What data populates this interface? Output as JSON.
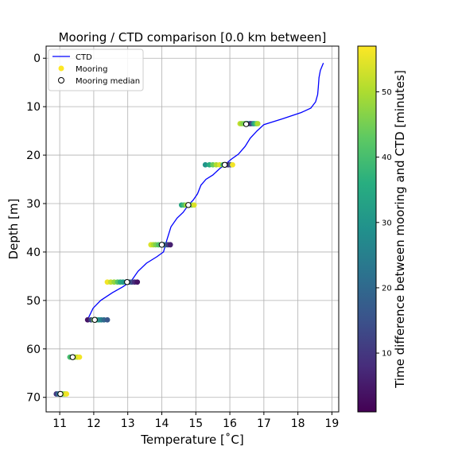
{
  "chart_data": {
    "type": "scatter",
    "title": "Mooring / CTD comparison [0.0 km between]",
    "xlabel": "Temperature [˚C]",
    "ylabel": "Depth [m]",
    "xlim": [
      10.6,
      19.2
    ],
    "ylim": [
      73,
      -2.5
    ],
    "y_inverted": true,
    "grid": true,
    "xticks": [
      "11",
      "12",
      "13",
      "14",
      "15",
      "16",
      "17",
      "18",
      "19"
    ],
    "yticks": [
      "0",
      "10",
      "20",
      "30",
      "40",
      "50",
      "60",
      "70"
    ],
    "legend": {
      "placement": "upper-left",
      "entries": [
        "CTD",
        "Mooring",
        "Mooring median"
      ]
    },
    "colorbar": {
      "label": "Time difference between mooring and CTD [minutes]",
      "range": [
        1,
        57
      ],
      "ticks": [
        "10",
        "20",
        "30",
        "40",
        "50"
      ],
      "colormap": "viridis"
    },
    "series": [
      {
        "name": "CTD",
        "kind": "line",
        "color": "#0000ff",
        "x": [
          18.75,
          18.66,
          18.62,
          18.6,
          18.58,
          18.52,
          18.38,
          18.1,
          17.55,
          17.0,
          16.8,
          16.6,
          16.45,
          16.25,
          16.05,
          15.85,
          15.7,
          15.5,
          15.3,
          15.15,
          15.05,
          14.92,
          14.78,
          14.63,
          14.45,
          14.27,
          14.15,
          14.05,
          13.85,
          13.55,
          13.3,
          13.1,
          12.85,
          12.55,
          12.2,
          11.98,
          11.85
        ],
        "y": [
          1,
          2.5,
          4,
          6,
          7.5,
          9,
          10.3,
          11.2,
          12.5,
          13.7,
          15,
          16.5,
          18.2,
          19.8,
          20.8,
          22,
          22.8,
          24.1,
          25,
          26.2,
          28,
          29.3,
          30.3,
          31.8,
          33,
          34.8,
          37.5,
          40,
          41,
          42.3,
          44,
          46,
          47.2,
          48.4,
          50,
          51.6,
          53.5
        ]
      },
      {
        "name": "Mooring",
        "kind": "scatter",
        "groups": [
          {
            "depth": 13.5,
            "temps": [
              16.3,
              16.35,
              16.42,
              16.48,
              16.52,
              16.58,
              16.62,
              16.68,
              16.72,
              16.78,
              16.82
            ],
            "minutes": [
              52,
              48,
              45,
              38,
              28,
              22,
              8,
              20,
              35,
              42,
              50
            ]
          },
          {
            "depth": 22,
            "temps": [
              15.28,
              15.4,
              15.5,
              15.6,
              15.7,
              15.8,
              15.88,
              15.95,
              16.02,
              16.08
            ],
            "minutes": [
              30,
              36,
              44,
              50,
              54,
              40,
              22,
              8,
              14,
              56
            ]
          },
          {
            "depth": 30.3,
            "temps": [
              14.58,
              14.65,
              14.72,
              14.8,
              14.88,
              14.95
            ],
            "minutes": [
              34,
              40,
              48,
              52,
              44,
              54
            ]
          },
          {
            "depth": 38.5,
            "temps": [
              13.68,
              13.75,
              13.82,
              13.9,
              13.98,
              14.05,
              14.12,
              14.18,
              14.25
            ],
            "minutes": [
              54,
              50,
              46,
              42,
              38,
              30,
              20,
              12,
              6
            ]
          },
          {
            "depth": 46.2,
            "temps": [
              12.4,
              12.5,
              12.6,
              12.7,
              12.78,
              12.86,
              12.95,
              13.05,
              13.12,
              13.2,
              13.28
            ],
            "minutes": [
              56,
              52,
              48,
              42,
              36,
              32,
              28,
              22,
              14,
              8,
              4
            ]
          },
          {
            "depth": 54,
            "temps": [
              11.82,
              11.92,
              12.0,
              12.08,
              12.15,
              12.22,
              12.3,
              12.4
            ],
            "minutes": [
              4,
              12,
              44,
              38,
              30,
              26,
              20,
              16
            ]
          },
          {
            "depth": 61.7,
            "temps": [
              11.3,
              11.38,
              11.45,
              11.52,
              11.58
            ],
            "minutes": [
              40,
              44,
              48,
              52,
              56
            ]
          },
          {
            "depth": 69.3,
            "temps": [
              10.9,
              10.96,
              11.02,
              11.08,
              11.15,
              11.2
            ],
            "minutes": [
              10,
              20,
              32,
              42,
              50,
              56
            ]
          }
        ]
      },
      {
        "name": "Mooring median",
        "kind": "scatter",
        "x": [
          16.48,
          15.85,
          14.78,
          14.0,
          12.98,
          12.03,
          11.38,
          11.02
        ],
        "y": [
          13.6,
          22,
          30.3,
          38.5,
          46.2,
          54,
          61.7,
          69.3
        ]
      }
    ]
  }
}
